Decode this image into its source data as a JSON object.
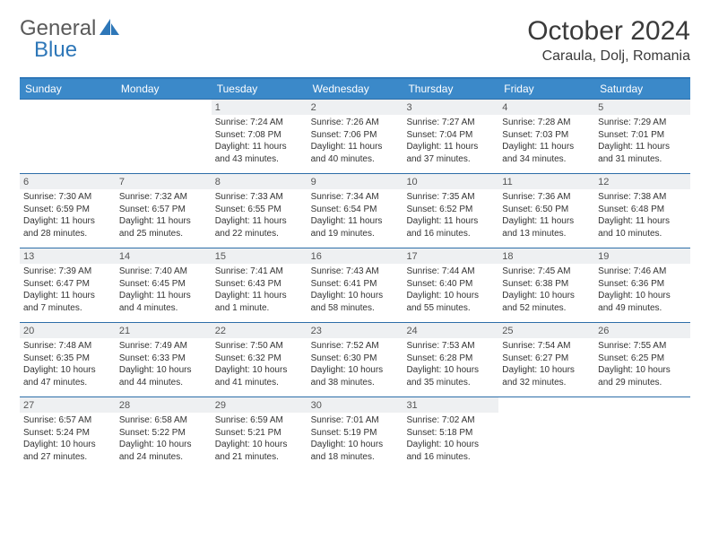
{
  "logo": {
    "text1": "General",
    "text2": "Blue",
    "accent_color": "#2e77b8",
    "text_color": "#5a5a5a"
  },
  "title": "October 2024",
  "location": "Caraula, Dolj, Romania",
  "colors": {
    "header_bg": "#3b89c9",
    "header_border_top": "#2e77b8",
    "row_border": "#2d6ea8",
    "daynum_bg": "#eef0f2",
    "text": "#333333",
    "background": "#ffffff"
  },
  "day_names": [
    "Sunday",
    "Monday",
    "Tuesday",
    "Wednesday",
    "Thursday",
    "Friday",
    "Saturday"
  ],
  "weeks": [
    [
      {
        "n": "",
        "sr": "",
        "ss": "",
        "dl": ""
      },
      {
        "n": "",
        "sr": "",
        "ss": "",
        "dl": ""
      },
      {
        "n": "1",
        "sr": "7:24 AM",
        "ss": "7:08 PM",
        "dl": "11 hours and 43 minutes."
      },
      {
        "n": "2",
        "sr": "7:26 AM",
        "ss": "7:06 PM",
        "dl": "11 hours and 40 minutes."
      },
      {
        "n": "3",
        "sr": "7:27 AM",
        "ss": "7:04 PM",
        "dl": "11 hours and 37 minutes."
      },
      {
        "n": "4",
        "sr": "7:28 AM",
        "ss": "7:03 PM",
        "dl": "11 hours and 34 minutes."
      },
      {
        "n": "5",
        "sr": "7:29 AM",
        "ss": "7:01 PM",
        "dl": "11 hours and 31 minutes."
      }
    ],
    [
      {
        "n": "6",
        "sr": "7:30 AM",
        "ss": "6:59 PM",
        "dl": "11 hours and 28 minutes."
      },
      {
        "n": "7",
        "sr": "7:32 AM",
        "ss": "6:57 PM",
        "dl": "11 hours and 25 minutes."
      },
      {
        "n": "8",
        "sr": "7:33 AM",
        "ss": "6:55 PM",
        "dl": "11 hours and 22 minutes."
      },
      {
        "n": "9",
        "sr": "7:34 AM",
        "ss": "6:54 PM",
        "dl": "11 hours and 19 minutes."
      },
      {
        "n": "10",
        "sr": "7:35 AM",
        "ss": "6:52 PM",
        "dl": "11 hours and 16 minutes."
      },
      {
        "n": "11",
        "sr": "7:36 AM",
        "ss": "6:50 PM",
        "dl": "11 hours and 13 minutes."
      },
      {
        "n": "12",
        "sr": "7:38 AM",
        "ss": "6:48 PM",
        "dl": "11 hours and 10 minutes."
      }
    ],
    [
      {
        "n": "13",
        "sr": "7:39 AM",
        "ss": "6:47 PM",
        "dl": "11 hours and 7 minutes."
      },
      {
        "n": "14",
        "sr": "7:40 AM",
        "ss": "6:45 PM",
        "dl": "11 hours and 4 minutes."
      },
      {
        "n": "15",
        "sr": "7:41 AM",
        "ss": "6:43 PM",
        "dl": "11 hours and 1 minute."
      },
      {
        "n": "16",
        "sr": "7:43 AM",
        "ss": "6:41 PM",
        "dl": "10 hours and 58 minutes."
      },
      {
        "n": "17",
        "sr": "7:44 AM",
        "ss": "6:40 PM",
        "dl": "10 hours and 55 minutes."
      },
      {
        "n": "18",
        "sr": "7:45 AM",
        "ss": "6:38 PM",
        "dl": "10 hours and 52 minutes."
      },
      {
        "n": "19",
        "sr": "7:46 AM",
        "ss": "6:36 PM",
        "dl": "10 hours and 49 minutes."
      }
    ],
    [
      {
        "n": "20",
        "sr": "7:48 AM",
        "ss": "6:35 PM",
        "dl": "10 hours and 47 minutes."
      },
      {
        "n": "21",
        "sr": "7:49 AM",
        "ss": "6:33 PM",
        "dl": "10 hours and 44 minutes."
      },
      {
        "n": "22",
        "sr": "7:50 AM",
        "ss": "6:32 PM",
        "dl": "10 hours and 41 minutes."
      },
      {
        "n": "23",
        "sr": "7:52 AM",
        "ss": "6:30 PM",
        "dl": "10 hours and 38 minutes."
      },
      {
        "n": "24",
        "sr": "7:53 AM",
        "ss": "6:28 PM",
        "dl": "10 hours and 35 minutes."
      },
      {
        "n": "25",
        "sr": "7:54 AM",
        "ss": "6:27 PM",
        "dl": "10 hours and 32 minutes."
      },
      {
        "n": "26",
        "sr": "7:55 AM",
        "ss": "6:25 PM",
        "dl": "10 hours and 29 minutes."
      }
    ],
    [
      {
        "n": "27",
        "sr": "6:57 AM",
        "ss": "5:24 PM",
        "dl": "10 hours and 27 minutes."
      },
      {
        "n": "28",
        "sr": "6:58 AM",
        "ss": "5:22 PM",
        "dl": "10 hours and 24 minutes."
      },
      {
        "n": "29",
        "sr": "6:59 AM",
        "ss": "5:21 PM",
        "dl": "10 hours and 21 minutes."
      },
      {
        "n": "30",
        "sr": "7:01 AM",
        "ss": "5:19 PM",
        "dl": "10 hours and 18 minutes."
      },
      {
        "n": "31",
        "sr": "7:02 AM",
        "ss": "5:18 PM",
        "dl": "10 hours and 16 minutes."
      },
      {
        "n": "",
        "sr": "",
        "ss": "",
        "dl": ""
      },
      {
        "n": "",
        "sr": "",
        "ss": "",
        "dl": ""
      }
    ]
  ]
}
